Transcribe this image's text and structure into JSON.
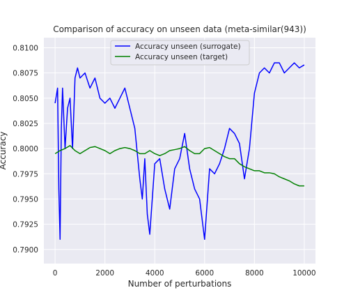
{
  "chart_data": {
    "type": "line",
    "title": "Comparison of accuracy on unseen data (meta-similar(943))",
    "xlabel": "Number of perturbations",
    "ylabel": "Accuracy",
    "xlim": [
      -450,
      10450
    ],
    "ylim": [
      0.7886,
      0.811
    ],
    "x_ticks": [
      0,
      2000,
      4000,
      6000,
      8000,
      10000
    ],
    "x_tick_labels": [
      "0",
      "2000",
      "4000",
      "6000",
      "8000",
      "10000"
    ],
    "y_ticks": [
      0.79,
      0.7925,
      0.795,
      0.7975,
      0.8,
      0.8025,
      0.805,
      0.8075,
      0.81
    ],
    "y_tick_labels": [
      "0.7900",
      "0.7925",
      "0.7950",
      "0.7975",
      "0.8000",
      "0.8025",
      "0.8050",
      "0.8075",
      "0.8100"
    ],
    "grid": true,
    "legend_position": "upper-center",
    "series": [
      {
        "name": "Accuracy unseen (surrogate)",
        "color": "#0000ff",
        "x": [
          0,
          100,
          150,
          200,
          250,
          300,
          400,
          500,
          600,
          700,
          800,
          900,
          1000,
          1200,
          1400,
          1600,
          1800,
          2000,
          2200,
          2400,
          2600,
          2800,
          3000,
          3200,
          3400,
          3500,
          3600,
          3700,
          3800,
          4000,
          4200,
          4400,
          4600,
          4800,
          5000,
          5200,
          5400,
          5600,
          5800,
          6000,
          6200,
          6400,
          6600,
          6800,
          7000,
          7200,
          7400,
          7600,
          7800,
          8000,
          8200,
          8400,
          8600,
          8800,
          9000,
          9200,
          9400,
          9600,
          9800,
          10000
        ],
        "values": [
          0.8045,
          0.806,
          0.796,
          0.791,
          0.802,
          0.806,
          0.8,
          0.804,
          0.805,
          0.8,
          0.807,
          0.808,
          0.807,
          0.8075,
          0.806,
          0.807,
          0.805,
          0.8045,
          0.805,
          0.804,
          0.805,
          0.806,
          0.804,
          0.802,
          0.797,
          0.795,
          0.799,
          0.7935,
          0.7915,
          0.7985,
          0.799,
          0.796,
          0.794,
          0.798,
          0.799,
          0.8015,
          0.798,
          0.796,
          0.795,
          0.791,
          0.798,
          0.7975,
          0.7985,
          0.8,
          0.802,
          0.8015,
          0.8005,
          0.797,
          0.8,
          0.8055,
          0.8075,
          0.808,
          0.8075,
          0.8085,
          0.8085,
          0.8075,
          0.808,
          0.8085,
          0.808,
          0.8083
        ]
      },
      {
        "name": "Accuracy unseen (target)",
        "color": "#008000",
        "x": [
          0,
          200,
          400,
          600,
          800,
          1000,
          1200,
          1400,
          1600,
          1800,
          2000,
          2200,
          2400,
          2600,
          2800,
          3000,
          3200,
          3400,
          3600,
          3800,
          4000,
          4200,
          4400,
          4600,
          4800,
          5000,
          5200,
          5400,
          5600,
          5800,
          6000,
          6200,
          6400,
          6600,
          6800,
          7000,
          7200,
          7400,
          7600,
          7800,
          8000,
          8200,
          8400,
          8600,
          8800,
          9000,
          9200,
          9400,
          9600,
          9800,
          10000
        ],
        "values": [
          0.7995,
          0.7998,
          0.8,
          0.8003,
          0.7998,
          0.7995,
          0.7998,
          0.8001,
          0.8002,
          0.8,
          0.7998,
          0.7995,
          0.7998,
          0.8,
          0.8001,
          0.8,
          0.7998,
          0.7995,
          0.7995,
          0.7998,
          0.7995,
          0.7993,
          0.7995,
          0.7998,
          0.7999,
          0.8,
          0.8002,
          0.7998,
          0.7995,
          0.7995,
          0.8,
          0.8001,
          0.7998,
          0.7995,
          0.7992,
          0.799,
          0.799,
          0.7985,
          0.7982,
          0.798,
          0.7978,
          0.7978,
          0.7976,
          0.7976,
          0.7975,
          0.7972,
          0.797,
          0.7968,
          0.7965,
          0.7963,
          0.7963
        ]
      }
    ]
  }
}
